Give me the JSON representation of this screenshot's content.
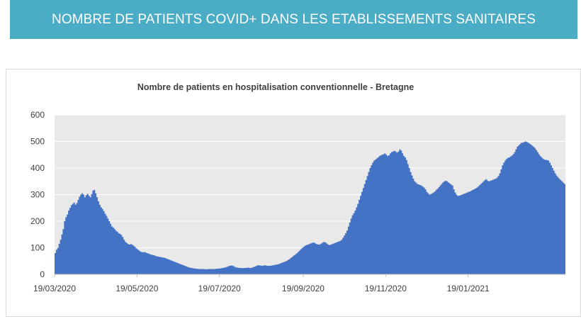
{
  "banner": {
    "title": "NOMBRE DE PATIENTS COVID+ DANS LES ETABLISSEMENTS SANITAIRES"
  },
  "colors": {
    "banner": "#4bacc6",
    "area": "#4472c4",
    "plot_bg": "#e9e9e9",
    "grid": "#ffffff"
  },
  "chart_data": {
    "type": "area",
    "title": "Nombre de patients en hospitalisation conventionnelle - Bretagne",
    "xlabel": "",
    "ylabel": "",
    "ylim": [
      0,
      600
    ],
    "yticks": [
      "0",
      "100",
      "200",
      "300",
      "400",
      "500",
      "600"
    ],
    "xticks": [
      "19/03/2020",
      "19/05/2020",
      "19/07/2020",
      "19/09/2020",
      "19/11/2020",
      "19/01/2021"
    ],
    "grid": true,
    "legend": "none",
    "series": [
      {
        "x_start": "19/03/2020",
        "x_step": "1 day",
        "values": [
          80,
          92,
          100,
          115,
          130,
          150,
          170,
          200,
          215,
          225,
          240,
          250,
          260,
          265,
          270,
          262,
          268,
          280,
          292,
          300,
          305,
          300,
          290,
          298,
          303,
          296,
          290,
          302,
          315,
          318,
          305,
          290,
          275,
          262,
          252,
          246,
          238,
          228,
          220,
          210,
          200,
          190,
          180,
          176,
          170,
          164,
          160,
          155,
          152,
          148,
          140,
          130,
          122,
          118,
          114,
          112,
          114,
          112,
          108,
          104,
          98,
          94,
          90,
          86,
          84,
          83,
          84,
          82,
          80,
          78,
          76,
          74,
          73,
          72,
          70,
          68,
          67,
          66,
          65,
          64,
          63,
          62,
          60,
          58,
          56,
          54,
          52,
          50,
          48,
          46,
          44,
          42,
          40,
          38,
          36,
          34,
          32,
          30,
          28,
          26,
          25,
          24,
          23,
          22,
          21,
          21,
          20,
          20,
          20,
          20,
          20,
          19,
          19,
          20,
          20,
          20,
          20,
          20,
          20,
          21,
          21,
          22,
          22,
          23,
          24,
          25,
          26,
          28,
          30,
          32,
          33,
          33,
          31,
          28,
          26,
          25,
          24,
          24,
          24,
          23,
          24,
          24,
          25,
          25,
          24,
          24,
          26,
          28,
          30,
          32,
          34,
          34,
          33,
          32,
          33,
          34,
          33,
          32,
          32,
          32,
          33,
          34,
          35,
          36,
          37,
          38,
          40,
          42,
          44,
          46,
          48,
          50,
          53,
          56,
          60,
          64,
          68,
          72,
          76,
          80,
          85,
          90,
          95,
          100,
          104,
          108,
          110,
          112,
          114,
          116,
          118,
          120,
          118,
          115,
          113,
          112,
          113,
          116,
          120,
          122,
          120,
          116,
          112,
          110,
          112,
          114,
          116,
          118,
          120,
          122,
          124,
          126,
          130,
          138,
          146,
          155,
          165,
          180,
          195,
          210,
          222,
          230,
          240,
          252,
          265,
          280,
          295,
          310,
          325,
          340,
          355,
          370,
          385,
          400,
          410,
          420,
          428,
          432,
          436,
          440,
          445,
          448,
          450,
          452,
          455,
          450,
          445,
          448,
          455,
          460,
          462,
          465,
          462,
          458,
          462,
          470,
          466,
          455,
          445,
          440,
          430,
          415,
          400,
          385,
          372,
          360,
          350,
          345,
          340,
          338,
          336,
          334,
          330,
          326,
          320,
          310,
          305,
          300,
          302,
          305,
          308,
          312,
          318,
          322,
          328,
          334,
          340,
          346,
          350,
          352,
          350,
          346,
          342,
          338,
          334,
          320,
          308,
          300,
          295,
          296,
          298,
          300,
          302,
          304,
          306,
          308,
          310,
          312,
          315,
          318,
          320,
          323,
          326,
          330,
          335,
          340,
          345,
          350,
          355,
          358,
          352,
          350,
          352,
          354,
          356,
          358,
          360,
          364,
          370,
          380,
          395,
          410,
          420,
          428,
          434,
          438,
          440,
          443,
          447,
          452,
          460,
          470,
          480,
          485,
          490,
          495,
          495,
          498,
          500,
          498,
          495,
          492,
          488,
          484,
          480,
          475,
          468,
          460,
          452,
          445,
          440,
          435,
          432,
          430,
          430,
          428,
          420,
          410,
          400,
          390,
          380,
          372,
          366,
          360,
          355,
          350,
          345,
          340
        ]
      }
    ]
  }
}
